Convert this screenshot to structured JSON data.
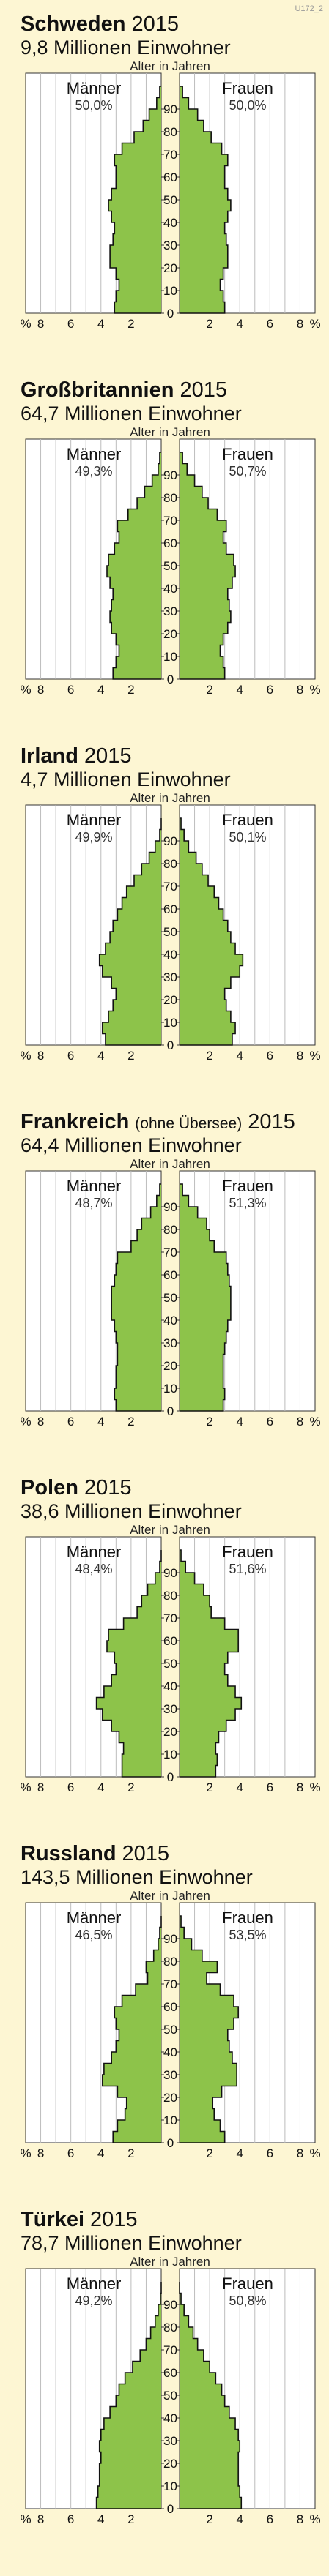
{
  "meta": {
    "code": "U172_2"
  },
  "common": {
    "age_axis_label": "Alter in Jahren",
    "male_label": "Männer",
    "female_label": "Frauen",
    "percent_symbol": "%",
    "age_ticks": [
      "0",
      "10",
      "20",
      "30",
      "40",
      "50",
      "60",
      "70",
      "80",
      "90"
    ],
    "x_ticks_left": [
      "8",
      "6",
      "4",
      "2"
    ],
    "x_ticks_right": [
      "2",
      "4",
      "6",
      "8"
    ],
    "colors": {
      "bar_fill": "#8dc34a",
      "bar_stroke": "#111111",
      "background": "#fdf6d3",
      "plot_bg": "#ffffff",
      "grid": "#bdbdbd"
    }
  },
  "chart_data": [
    {
      "type": "bar",
      "title": "Schweden",
      "title_suffix": "",
      "year": "2015",
      "subtitle": "9,8 Millionen Einwohner",
      "male_share": "50,0%",
      "female_share": "50,0%",
      "age_groups": [
        "0-4",
        "5-9",
        "10-14",
        "15-19",
        "20-24",
        "25-29",
        "30-34",
        "35-39",
        "40-44",
        "45-49",
        "50-54",
        "55-59",
        "60-64",
        "65-69",
        "70-74",
        "75-79",
        "80-84",
        "85-89",
        "90-94",
        "95+"
      ],
      "xlim": [
        -9,
        9
      ],
      "series": [
        {
          "name": "Männer",
          "values": [
            3.1,
            3.0,
            2.8,
            3.0,
            3.4,
            3.4,
            3.2,
            3.1,
            3.3,
            3.5,
            3.3,
            3.0,
            3.0,
            3.1,
            2.6,
            1.8,
            1.2,
            0.8,
            0.3,
            0.1
          ]
        },
        {
          "name": "Frauen",
          "values": [
            3.0,
            2.9,
            2.7,
            2.9,
            3.2,
            3.2,
            3.1,
            3.0,
            3.2,
            3.4,
            3.2,
            3.0,
            3.0,
            3.2,
            2.8,
            2.1,
            1.6,
            1.2,
            0.6,
            0.2
          ]
        }
      ]
    },
    {
      "type": "bar",
      "title": "Großbritannien",
      "title_suffix": "",
      "year": "2015",
      "subtitle": "64,7 Millionen Einwohner",
      "male_share": "49,3%",
      "female_share": "50,7%",
      "age_groups": [
        "0-4",
        "5-9",
        "10-14",
        "15-19",
        "20-24",
        "25-29",
        "30-34",
        "35-39",
        "40-44",
        "45-49",
        "50-54",
        "55-59",
        "60-64",
        "65-69",
        "70-74",
        "75-79",
        "80-84",
        "85-89",
        "90-94",
        "95+"
      ],
      "xlim": [
        -9,
        9
      ],
      "series": [
        {
          "name": "Männer",
          "values": [
            3.2,
            3.0,
            2.8,
            3.0,
            3.3,
            3.4,
            3.3,
            3.2,
            3.4,
            3.6,
            3.5,
            3.1,
            2.8,
            2.9,
            2.2,
            1.6,
            1.1,
            0.6,
            0.2,
            0.1
          ]
        },
        {
          "name": "Frauen",
          "values": [
            3.0,
            2.9,
            2.7,
            2.9,
            3.2,
            3.4,
            3.3,
            3.2,
            3.5,
            3.7,
            3.6,
            3.1,
            2.9,
            3.1,
            2.5,
            1.9,
            1.5,
            1.0,
            0.5,
            0.2
          ]
        }
      ]
    },
    {
      "type": "bar",
      "title": "Irland",
      "title_suffix": "",
      "year": "2015",
      "subtitle": "4,7 Millionen Einwohner",
      "male_share": "49,9%",
      "female_share": "50,1%",
      "age_groups": [
        "0-4",
        "5-9",
        "10-14",
        "15-19",
        "20-24",
        "25-29",
        "30-34",
        "35-39",
        "40-44",
        "45-49",
        "50-54",
        "55-59",
        "60-64",
        "65-69",
        "70-74",
        "75-79",
        "80-84",
        "85-89",
        "90-94",
        "95+"
      ],
      "xlim": [
        -9,
        9
      ],
      "series": [
        {
          "name": "Männer",
          "values": [
            3.7,
            3.9,
            3.5,
            3.2,
            3.0,
            3.3,
            3.9,
            4.1,
            3.7,
            3.4,
            3.2,
            2.9,
            2.6,
            2.3,
            1.8,
            1.3,
            0.8,
            0.4,
            0.1,
            0.0
          ]
        },
        {
          "name": "Frauen",
          "values": [
            3.5,
            3.7,
            3.4,
            3.1,
            3.0,
            3.4,
            4.0,
            4.2,
            3.7,
            3.4,
            3.2,
            2.9,
            2.6,
            2.3,
            1.9,
            1.5,
            1.1,
            0.6,
            0.3,
            0.1
          ]
        }
      ]
    },
    {
      "type": "bar",
      "title": "Frankreich",
      "title_suffix": "(ohne Übersee)",
      "year": "2015",
      "subtitle": "64,4 Millionen Einwohner",
      "male_share": "48,7%",
      "female_share": "51,3%",
      "age_groups": [
        "0-4",
        "5-9",
        "10-14",
        "15-19",
        "20-24",
        "25-29",
        "30-34",
        "35-39",
        "40-44",
        "45-49",
        "50-54",
        "55-59",
        "60-64",
        "65-69",
        "70-74",
        "75-79",
        "80-84",
        "85-89",
        "90-94",
        "95+"
      ],
      "xlim": [
        -9,
        9
      ],
      "series": [
        {
          "name": "Männer",
          "values": [
            3.0,
            3.1,
            3.0,
            3.0,
            2.9,
            2.9,
            3.0,
            3.1,
            3.3,
            3.3,
            3.3,
            3.1,
            3.0,
            2.9,
            2.0,
            1.6,
            1.3,
            0.7,
            0.3,
            0.1
          ]
        },
        {
          "name": "Frauen",
          "values": [
            2.9,
            3.0,
            2.9,
            2.9,
            2.9,
            3.0,
            3.1,
            3.2,
            3.4,
            3.4,
            3.4,
            3.3,
            3.2,
            3.1,
            2.3,
            2.0,
            1.8,
            1.2,
            0.6,
            0.2
          ]
        }
      ]
    },
    {
      "type": "bar",
      "title": "Polen",
      "title_suffix": "",
      "year": "2015",
      "subtitle": "38,6 Millionen Einwohner",
      "male_share": "48,4%",
      "female_share": "51,6%",
      "age_groups": [
        "0-4",
        "5-9",
        "10-14",
        "15-19",
        "20-24",
        "25-29",
        "30-34",
        "35-39",
        "40-44",
        "45-49",
        "50-54",
        "55-59",
        "60-64",
        "65-69",
        "70-74",
        "75-79",
        "80-84",
        "85-89",
        "90-94",
        "95+"
      ],
      "xlim": [
        -9,
        9
      ],
      "series": [
        {
          "name": "Männer",
          "values": [
            2.6,
            2.6,
            2.5,
            2.8,
            3.3,
            3.9,
            4.3,
            3.8,
            3.3,
            3.0,
            3.1,
            3.6,
            3.5,
            2.5,
            1.6,
            1.3,
            0.9,
            0.4,
            0.1,
            0.0
          ]
        },
        {
          "name": "Frauen",
          "values": [
            2.4,
            2.5,
            2.4,
            2.6,
            3.1,
            3.7,
            4.1,
            3.7,
            3.2,
            3.0,
            3.2,
            3.9,
            3.9,
            3.0,
            2.1,
            2.0,
            1.6,
            1.0,
            0.4,
            0.1
          ]
        }
      ]
    },
    {
      "type": "bar",
      "title": "Russland",
      "title_suffix": "",
      "year": "2015",
      "subtitle": "143,5 Millionen Einwohner",
      "male_share": "46,5%",
      "female_share": "53,5%",
      "age_groups": [
        "0-4",
        "5-9",
        "10-14",
        "15-19",
        "20-24",
        "25-29",
        "30-34",
        "35-39",
        "40-44",
        "45-49",
        "50-54",
        "55-59",
        "60-64",
        "65-69",
        "70-74",
        "75-79",
        "80-84",
        "85-89",
        "90-94",
        "95+"
      ],
      "xlim": [
        -9,
        9
      ],
      "series": [
        {
          "name": "Männer",
          "values": [
            3.2,
            2.9,
            2.4,
            2.3,
            2.9,
            3.9,
            3.8,
            3.3,
            3.0,
            2.8,
            3.0,
            3.1,
            2.6,
            1.7,
            0.9,
            1.0,
            0.5,
            0.2,
            0.1,
            0.0
          ]
        },
        {
          "name": "Frauen",
          "values": [
            3.0,
            2.7,
            2.3,
            2.2,
            2.8,
            3.8,
            3.8,
            3.5,
            3.3,
            3.2,
            3.6,
            3.9,
            3.6,
            2.7,
            1.8,
            2.5,
            1.5,
            0.8,
            0.3,
            0.1
          ]
        }
      ]
    },
    {
      "type": "bar",
      "title": "Türkei",
      "title_suffix": "",
      "year": "2015",
      "subtitle": "78,7 Millionen Einwohner",
      "male_share": "49,2%",
      "female_share": "50,8%",
      "age_groups": [
        "0-4",
        "5-9",
        "10-14",
        "15-19",
        "20-24",
        "25-29",
        "30-34",
        "35-39",
        "40-44",
        "45-49",
        "50-54",
        "55-59",
        "60-64",
        "65-69",
        "70-74",
        "75-79",
        "80-84",
        "85-89",
        "90-94",
        "95+"
      ],
      "xlim": [
        -9,
        9
      ],
      "series": [
        {
          "name": "Männer",
          "values": [
            4.3,
            4.2,
            4.1,
            4.1,
            4.0,
            4.1,
            4.0,
            3.8,
            3.4,
            3.0,
            2.8,
            2.4,
            1.9,
            1.4,
            1.0,
            0.7,
            0.4,
            0.2,
            0.05,
            0.0
          ]
        },
        {
          "name": "Frauen",
          "values": [
            4.1,
            4.0,
            3.9,
            3.9,
            3.9,
            4.0,
            3.9,
            3.7,
            3.3,
            3.0,
            2.8,
            2.4,
            2.0,
            1.6,
            1.2,
            0.9,
            0.6,
            0.3,
            0.1,
            0.0
          ]
        }
      ]
    }
  ]
}
